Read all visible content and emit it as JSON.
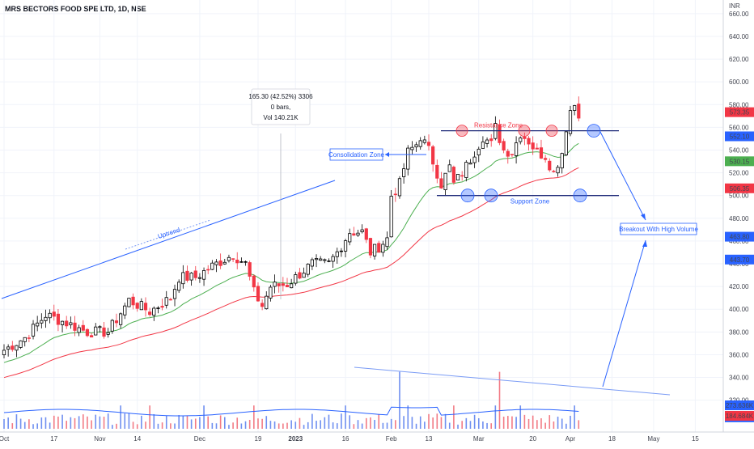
{
  "header": {
    "title": "MRS BECTORS FOOD SPE LTD, 1D, NSE"
  },
  "chart_data": {
    "type": "candlestick",
    "currency_label": "INR",
    "y_ticks": [
      660,
      640,
      620,
      600,
      580,
      560,
      540,
      520,
      500,
      480,
      460,
      440,
      420,
      400,
      380,
      360,
      340,
      320
    ],
    "y_tick_labels": [
      "660.00",
      "640.00",
      "620.00",
      "600.00",
      "580.00",
      "560.00",
      "540.00",
      "520.00",
      "500.00",
      "480.00",
      "460.00",
      "440.00",
      "420.00",
      "400.00",
      "380.00",
      "360.00",
      "340.00",
      "320.00"
    ],
    "ylim": [
      292,
      672
    ],
    "x_ticks": [
      {
        "idx": 0,
        "label": "Oct"
      },
      {
        "idx": 12,
        "label": "17"
      },
      {
        "idx": 23,
        "label": "Nov"
      },
      {
        "idx": 32,
        "label": "14"
      },
      {
        "idx": 47,
        "label": "Dec"
      },
      {
        "idx": 61,
        "label": "19"
      },
      {
        "idx": 70,
        "label": "2023"
      },
      {
        "idx": 82,
        "label": "16"
      },
      {
        "idx": 93,
        "label": "Feb"
      },
      {
        "idx": 102,
        "label": "13"
      },
      {
        "idx": 114,
        "label": "Mar"
      },
      {
        "idx": 127,
        "label": "20"
      },
      {
        "idx": 136,
        "label": "Apr"
      },
      {
        "idx": 146,
        "label": "18"
      },
      {
        "idx": 156,
        "label": "May"
      },
      {
        "idx": 166,
        "label": "15"
      }
    ],
    "x_domain": [
      0,
      170
    ],
    "price_badges": [
      {
        "value": 573.35,
        "label": "573.35",
        "color": "#f23645"
      },
      {
        "value": 552.1,
        "label": "552.10",
        "color": "#2962ff"
      },
      {
        "value": 530.15,
        "label": "530.15",
        "color": "#4caf50"
      },
      {
        "value": 506.35,
        "label": "506.35",
        "color": "#f23645"
      },
      {
        "value": 463.8,
        "label": "463.80",
        "color": "#2962ff"
      },
      {
        "value": 443.7,
        "label": "443.70",
        "color": "#2962ff"
      },
      {
        "value": 304.9,
        "label": "304.90",
        "color": "#2962ff"
      }
    ],
    "volume_badges": [
      {
        "label": "273.636K",
        "color": "#2962ff"
      },
      {
        "label": "184.684K",
        "color": "#f23645"
      }
    ],
    "colors": {
      "up": "#000000",
      "down": "#f23645",
      "ema_fast": "#4caf50",
      "ema_slow": "#f23645",
      "annotation": "#2962ff",
      "volume_up": "#6f8ff0",
      "volume_down": "#f27b85"
    },
    "annotations": {
      "measure_box": {
        "lines": [
          "165.30 (42.52%) 3306",
          "0 bars,",
          "Vol 140.21K"
        ]
      },
      "uptrend_label": "Uptrend",
      "consolidation_label": "Consolidation Zone",
      "resistance_label": "Resistance Zone",
      "support_label": "Support Zone",
      "breakout_label": "Breakout With High Volume",
      "resistance_level": 557,
      "support_level": 500
    }
  }
}
